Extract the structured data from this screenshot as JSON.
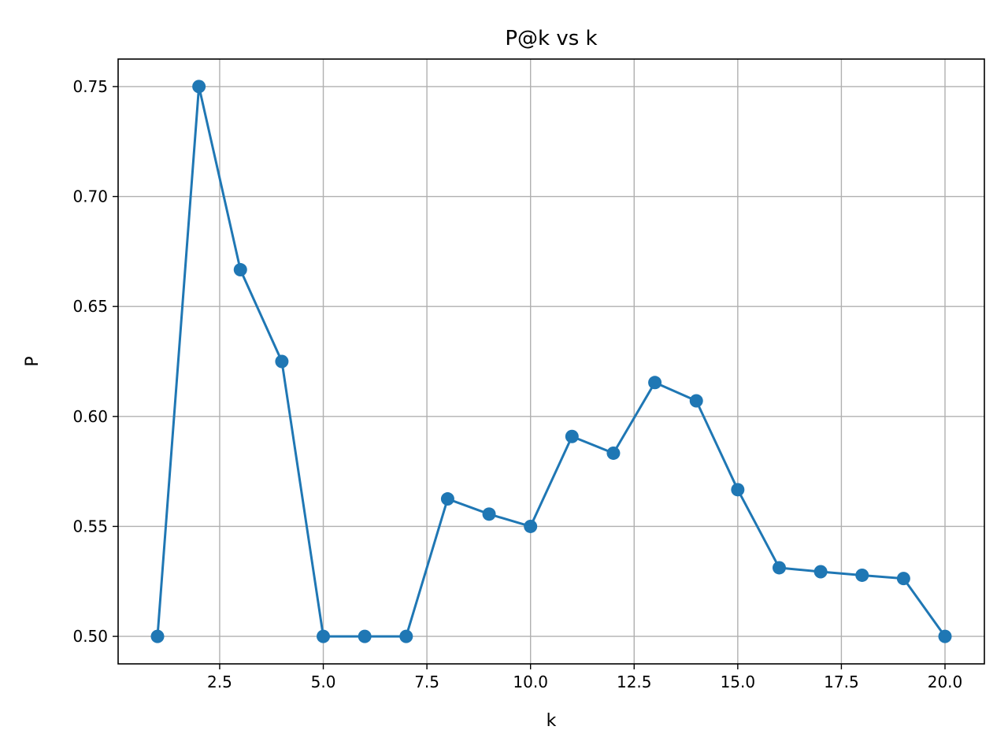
{
  "chart_data": {
    "type": "line",
    "title": "P@k vs k",
    "xlabel": "k",
    "ylabel": "P",
    "xlim": [
      0.05,
      20.95
    ],
    "ylim": [
      0.4875,
      0.7625
    ],
    "x_ticks": [
      2.5,
      5.0,
      7.5,
      10.0,
      12.5,
      15.0,
      17.5,
      20.0
    ],
    "x_tick_labels": [
      "2.5",
      "5.0",
      "7.5",
      "10.0",
      "12.5",
      "15.0",
      "17.5",
      "20.0"
    ],
    "y_ticks": [
      0.5,
      0.55,
      0.6,
      0.65,
      0.7,
      0.75
    ],
    "y_tick_labels": [
      "0.50",
      "0.55",
      "0.60",
      "0.65",
      "0.70",
      "0.75"
    ],
    "grid": true,
    "marker": "circle",
    "series": [
      {
        "color": "#1f77b4",
        "x": [
          1,
          2,
          3,
          4,
          5,
          6,
          7,
          8,
          9,
          10,
          11,
          12,
          13,
          14,
          15,
          16,
          17,
          18,
          19,
          20
        ],
        "y": [
          0.5,
          0.75,
          0.6667,
          0.625,
          0.5,
          0.5,
          0.5,
          0.5625,
          0.5556,
          0.55,
          0.5909,
          0.5833,
          0.6154,
          0.6071,
          0.5667,
          0.5312,
          0.5294,
          0.5278,
          0.5263,
          0.5
        ]
      }
    ]
  }
}
